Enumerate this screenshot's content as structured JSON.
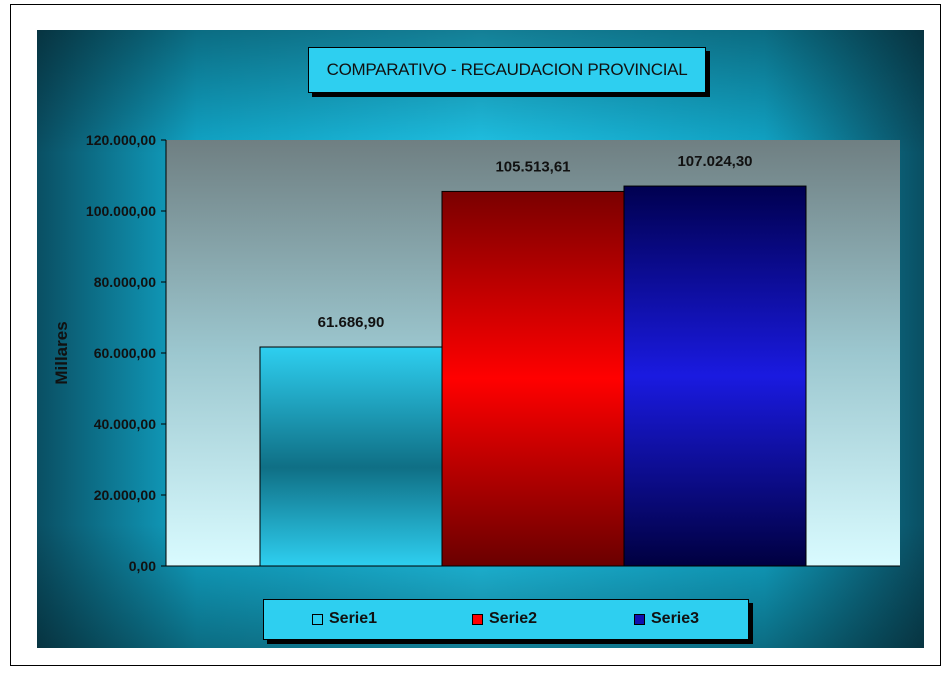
{
  "chart_data": {
    "type": "bar",
    "title": "COMPARATIVO - RECAUDACION PROVINCIAL",
    "ylabel": "Millares",
    "xlabel": "",
    "ylim": [
      0,
      120000
    ],
    "yticks": [
      "0,00",
      "20.000,00",
      "40.000,00",
      "60.000,00",
      "80.000,00",
      "100.000,00",
      "120.000,00"
    ],
    "series": [
      {
        "name": "Serie1",
        "value": 61686.9,
        "label": "61.686,90",
        "color": "#2ecff0"
      },
      {
        "name": "Serie2",
        "value": 105513.61,
        "label": "105.513,61",
        "color": "#ff0000"
      },
      {
        "name": "Serie3",
        "value": 107024.3,
        "label": "107.024,30",
        "color": "#1010b0"
      }
    ],
    "legend_position": "bottom",
    "grid": false
  }
}
